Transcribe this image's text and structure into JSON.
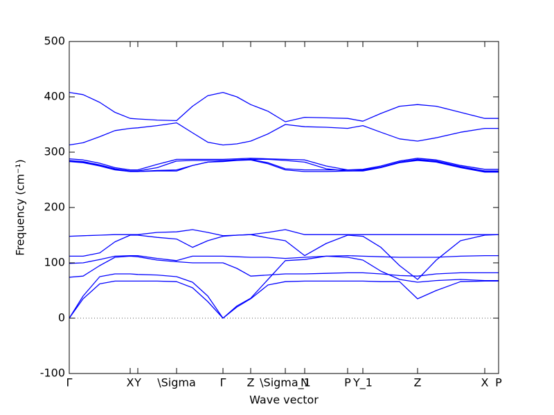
{
  "chart_data": {
    "type": "line",
    "xlabel": "Wave vector",
    "ylabel": "Frequency (cm⁻¹)",
    "xlim": [
      0,
      620
    ],
    "ylim": [
      -100,
      500
    ],
    "yticks": [
      -100,
      0,
      100,
      200,
      300,
      400,
      500
    ],
    "xticks": [
      {
        "value": 0,
        "label": "Γ"
      },
      {
        "value": 88,
        "label": "X"
      },
      {
        "value": 99,
        "label": "Y"
      },
      {
        "value": 155,
        "label": "\\Sigma"
      },
      {
        "value": 222,
        "label": "Γ"
      },
      {
        "value": 262,
        "label": "Z"
      },
      {
        "value": 312,
        "label": "\\Sigma_1"
      },
      {
        "value": 340,
        "label": "N"
      },
      {
        "value": 402,
        "label": "P"
      },
      {
        "value": 424,
        "label": "Y_1"
      },
      {
        "value": 503,
        "label": "Z"
      },
      {
        "value": 600,
        "label": "X"
      },
      {
        "value": 620,
        "label": "P"
      }
    ],
    "x": [
      0,
      20,
      44,
      66,
      88,
      99,
      127,
      155,
      178,
      200,
      222,
      242,
      262,
      287,
      312,
      340,
      371,
      402,
      424,
      450,
      477,
      503,
      530,
      565,
      600,
      620
    ],
    "color": "#0000ff",
    "series": [
      {
        "values": [
          408,
          404,
          390,
          372,
          361,
          360,
          358,
          357,
          383,
          402,
          408,
          400,
          386,
          374,
          355,
          363,
          362,
          361,
          356,
          370,
          383,
          386,
          383,
          372,
          361,
          361
        ]
      },
      {
        "values": [
          313,
          317,
          328,
          339,
          343,
          344,
          348,
          353,
          335,
          318,
          313,
          315,
          320,
          333,
          350,
          346,
          345,
          343,
          348,
          336,
          324,
          320,
          326,
          336,
          343,
          343
        ]
      },
      {
        "values": [
          288,
          286,
          280,
          272,
          268,
          268,
          278,
          287,
          287,
          287,
          287,
          288,
          289,
          288,
          287,
          286,
          275,
          268,
          269,
          275,
          284,
          289,
          286,
          276,
          269,
          269
        ]
      },
      {
        "values": [
          285,
          283,
          277,
          270,
          266,
          266,
          272,
          284,
          285,
          285,
          285,
          286,
          287,
          287,
          285,
          282,
          270,
          266,
          267,
          273,
          282,
          287,
          284,
          274,
          266,
          266
        ]
      },
      {
        "values": [
          284,
          282,
          276,
          269,
          265,
          265,
          267,
          268,
          276,
          282,
          284,
          286,
          287,
          281,
          270,
          268,
          268,
          268,
          268,
          273,
          282,
          286,
          283,
          273,
          265,
          265
        ]
      },
      {
        "values": [
          283,
          281,
          275,
          268,
          265,
          265,
          266,
          266,
          276,
          282,
          283,
          285,
          286,
          279,
          268,
          265,
          265,
          266,
          266,
          272,
          281,
          285,
          282,
          272,
          264,
          264
        ]
      },
      {
        "values": [
          148,
          149,
          150,
          151,
          151,
          151,
          155,
          156,
          160,
          155,
          149,
          150,
          151,
          155,
          160,
          151,
          151,
          151,
          151,
          151,
          151,
          151,
          151,
          151,
          151,
          151
        ]
      },
      {
        "values": [
          112,
          112,
          118,
          138,
          150,
          150,
          146,
          143,
          128,
          140,
          148,
          150,
          151,
          145,
          140,
          113,
          135,
          150,
          148,
          128,
          95,
          70,
          105,
          140,
          150,
          151
        ]
      },
      {
        "values": [
          99,
          100,
          106,
          112,
          113,
          113,
          108,
          104,
          112,
          112,
          112,
          111,
          110,
          110,
          108,
          110,
          112,
          113,
          112,
          111,
          110,
          110,
          110,
          112,
          113,
          113
        ]
      },
      {
        "values": [
          74,
          76,
          95,
          110,
          112,
          111,
          105,
          102,
          100,
          100,
          100,
          90,
          76,
          78,
          80,
          80,
          81,
          82,
          82,
          80,
          77,
          76,
          80,
          82,
          82,
          82
        ]
      },
      {
        "values": [
          0,
          40,
          75,
          80,
          80,
          79,
          78,
          75,
          65,
          40,
          0,
          22,
          36,
          70,
          104,
          106,
          112,
          110,
          105,
          85,
          70,
          65,
          68,
          70,
          68,
          68
        ]
      },
      {
        "values": [
          0,
          35,
          62,
          67,
          67,
          67,
          67,
          66,
          55,
          30,
          0,
          20,
          35,
          60,
          66,
          67,
          67,
          67,
          67,
          66,
          66,
          35,
          50,
          66,
          67,
          67
        ]
      }
    ]
  }
}
